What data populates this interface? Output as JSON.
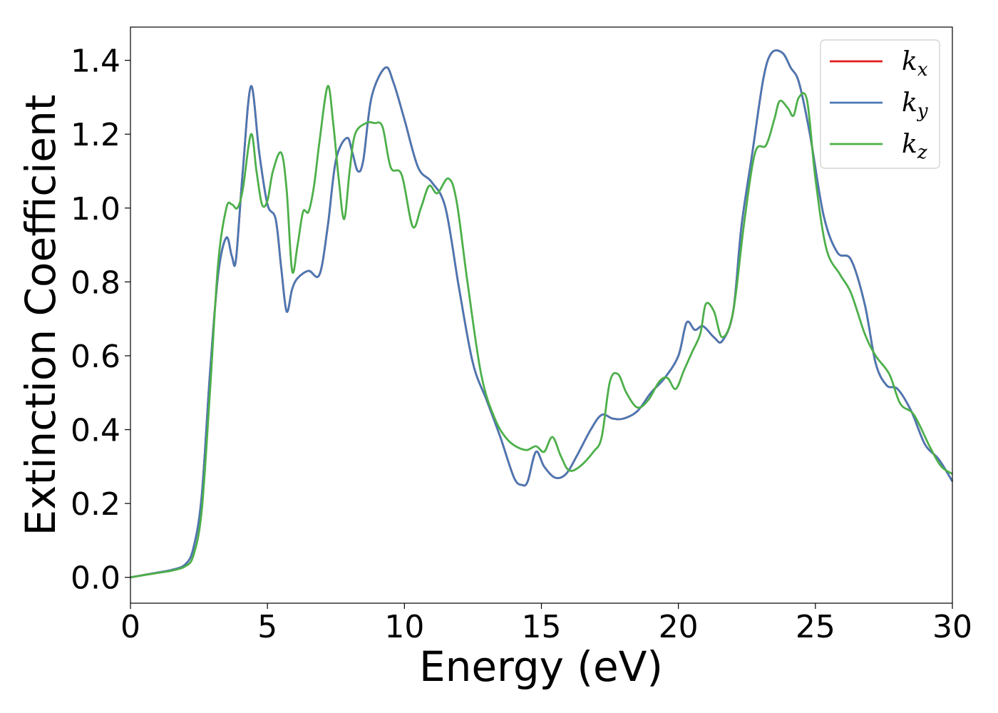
{
  "chart_data": {
    "type": "line",
    "xlabel": "Energy (eV)",
    "ylabel": "Extinction Coefficient",
    "xlim": [
      0,
      30
    ],
    "ylim": [
      -0.07,
      1.49
    ],
    "xticks": [
      0,
      5,
      10,
      15,
      20,
      25,
      30
    ],
    "xtick_labels": [
      "0",
      "5",
      "10",
      "15",
      "20",
      "25",
      "30"
    ],
    "yticks": [
      0.0,
      0.2,
      0.4,
      0.6,
      0.8,
      1.0,
      1.2,
      1.4
    ],
    "ytick_labels": [
      "0.0",
      "0.2",
      "0.4",
      "0.6",
      "0.8",
      "1.0",
      "1.2",
      "1.4"
    ],
    "grid": false,
    "legend_position": "top-right",
    "series": [
      {
        "name": "k",
        "subscript": "x",
        "color": "#e41a1c",
        "x": [
          0,
          1,
          1.5,
          2,
          2.3,
          2.6,
          2.9,
          3.2,
          3.5,
          3.7,
          3.85,
          4.1,
          4.4,
          4.7,
          5,
          5.3,
          5.5,
          5.7,
          5.9,
          6.1,
          6.5,
          6.9,
          7.2,
          7.5,
          7.9,
          8.1,
          8.3,
          8.5,
          8.8,
          9.3,
          9.6,
          10,
          10.5,
          11,
          11.5,
          12,
          12.5,
          13,
          13.5,
          14,
          14.3,
          14.5,
          14.8,
          15.1,
          15.5,
          15.9,
          16.3,
          16.8,
          17.2,
          17.6,
          18,
          18.5,
          19,
          19.5,
          20,
          20.3,
          20.6,
          20.9,
          21.3,
          21.6,
          22,
          22.3,
          22.7,
          23.1,
          23.4,
          23.8,
          24.1,
          24.4,
          24.8,
          25.3,
          25.8,
          26.3,
          26.8,
          27.2,
          27.6,
          28,
          28.5,
          29,
          29.5,
          30
        ],
        "y": [
          0.0,
          0.013,
          0.02,
          0.035,
          0.08,
          0.22,
          0.55,
          0.82,
          0.92,
          0.87,
          0.86,
          1.1,
          1.33,
          1.15,
          1.01,
          0.97,
          0.84,
          0.72,
          0.78,
          0.81,
          0.83,
          0.82,
          0.95,
          1.13,
          1.19,
          1.15,
          1.1,
          1.13,
          1.3,
          1.38,
          1.34,
          1.24,
          1.11,
          1.07,
          1.0,
          0.78,
          0.58,
          0.48,
          0.38,
          0.27,
          0.25,
          0.26,
          0.34,
          0.3,
          0.27,
          0.28,
          0.33,
          0.4,
          0.44,
          0.43,
          0.43,
          0.45,
          0.5,
          0.54,
          0.6,
          0.69,
          0.67,
          0.68,
          0.65,
          0.64,
          0.72,
          0.95,
          1.15,
          1.35,
          1.42,
          1.42,
          1.38,
          1.34,
          1.2,
          0.98,
          0.88,
          0.86,
          0.74,
          0.58,
          0.52,
          0.51,
          0.45,
          0.36,
          0.32,
          0.26
        ]
      },
      {
        "name": "k",
        "subscript": "y",
        "color": "#4a78b4",
        "x": [
          0,
          1,
          1.5,
          2,
          2.3,
          2.6,
          2.9,
          3.2,
          3.5,
          3.7,
          3.85,
          4.1,
          4.4,
          4.7,
          5,
          5.3,
          5.5,
          5.7,
          5.9,
          6.1,
          6.5,
          6.9,
          7.2,
          7.5,
          7.9,
          8.1,
          8.3,
          8.5,
          8.8,
          9.3,
          9.6,
          10,
          10.5,
          11,
          11.5,
          12,
          12.5,
          13,
          13.5,
          14,
          14.3,
          14.5,
          14.8,
          15.1,
          15.5,
          15.9,
          16.3,
          16.8,
          17.2,
          17.6,
          18,
          18.5,
          19,
          19.5,
          20,
          20.3,
          20.6,
          20.9,
          21.3,
          21.6,
          22,
          22.3,
          22.7,
          23.1,
          23.4,
          23.8,
          24.1,
          24.4,
          24.8,
          25.3,
          25.8,
          26.3,
          26.8,
          27.2,
          27.6,
          28,
          28.5,
          29,
          29.5,
          30
        ],
        "y": [
          0.0,
          0.013,
          0.02,
          0.035,
          0.08,
          0.22,
          0.55,
          0.82,
          0.92,
          0.87,
          0.86,
          1.1,
          1.33,
          1.15,
          1.01,
          0.97,
          0.84,
          0.72,
          0.78,
          0.81,
          0.83,
          0.82,
          0.95,
          1.13,
          1.19,
          1.15,
          1.1,
          1.13,
          1.3,
          1.38,
          1.34,
          1.24,
          1.11,
          1.07,
          1.0,
          0.78,
          0.58,
          0.48,
          0.38,
          0.27,
          0.25,
          0.26,
          0.34,
          0.3,
          0.27,
          0.28,
          0.33,
          0.4,
          0.44,
          0.43,
          0.43,
          0.45,
          0.5,
          0.54,
          0.6,
          0.69,
          0.67,
          0.68,
          0.65,
          0.64,
          0.72,
          0.95,
          1.15,
          1.35,
          1.42,
          1.42,
          1.38,
          1.34,
          1.2,
          0.98,
          0.88,
          0.86,
          0.74,
          0.58,
          0.52,
          0.51,
          0.45,
          0.36,
          0.32,
          0.26
        ]
      },
      {
        "name": "k",
        "subscript": "z",
        "color": "#4daf4a",
        "x": [
          0,
          1,
          1.5,
          2,
          2.3,
          2.6,
          2.9,
          3.2,
          3.5,
          3.7,
          3.9,
          4.1,
          4.4,
          4.6,
          4.8,
          5.0,
          5.2,
          5.5,
          5.7,
          5.9,
          6.1,
          6.3,
          6.5,
          6.7,
          6.9,
          7.2,
          7.4,
          7.6,
          7.8,
          8.0,
          8.2,
          8.6,
          8.9,
          9.2,
          9.5,
          9.9,
          10.3,
          10.6,
          10.9,
          11.2,
          11.6,
          11.9,
          12.3,
          12.8,
          13.3,
          13.8,
          14.4,
          14.8,
          15.1,
          15.4,
          15.7,
          16.0,
          16.4,
          16.9,
          17.2,
          17.5,
          17.8,
          18.1,
          18.5,
          18.9,
          19.3,
          19.6,
          19.9,
          20.2,
          20.5,
          20.8,
          21.0,
          21.3,
          21.6,
          22.0,
          22.4,
          22.8,
          23.2,
          23.5,
          23.7,
          24.0,
          24.2,
          24.4,
          24.7,
          25.0,
          25.4,
          25.9,
          26.3,
          26.8,
          27.2,
          27.7,
          28.1,
          28.6,
          29.2,
          29.6,
          30
        ],
        "y": [
          0.0,
          0.012,
          0.018,
          0.03,
          0.06,
          0.18,
          0.5,
          0.85,
          1.0,
          1.01,
          1.0,
          1.05,
          1.2,
          1.1,
          1.01,
          1.02,
          1.1,
          1.15,
          1.05,
          0.83,
          0.9,
          0.99,
          0.99,
          1.06,
          1.18,
          1.33,
          1.23,
          1.08,
          0.97,
          1.1,
          1.2,
          1.23,
          1.23,
          1.22,
          1.11,
          1.09,
          0.95,
          1.0,
          1.06,
          1.04,
          1.08,
          1.02,
          0.8,
          0.55,
          0.43,
          0.37,
          0.345,
          0.355,
          0.34,
          0.38,
          0.33,
          0.29,
          0.3,
          0.34,
          0.38,
          0.53,
          0.55,
          0.5,
          0.46,
          0.48,
          0.53,
          0.54,
          0.51,
          0.56,
          0.61,
          0.66,
          0.74,
          0.72,
          0.65,
          0.72,
          0.96,
          1.15,
          1.17,
          1.24,
          1.29,
          1.27,
          1.25,
          1.3,
          1.29,
          1.08,
          0.89,
          0.82,
          0.77,
          0.66,
          0.6,
          0.55,
          0.47,
          0.44,
          0.35,
          0.3,
          0.28
        ]
      }
    ]
  }
}
